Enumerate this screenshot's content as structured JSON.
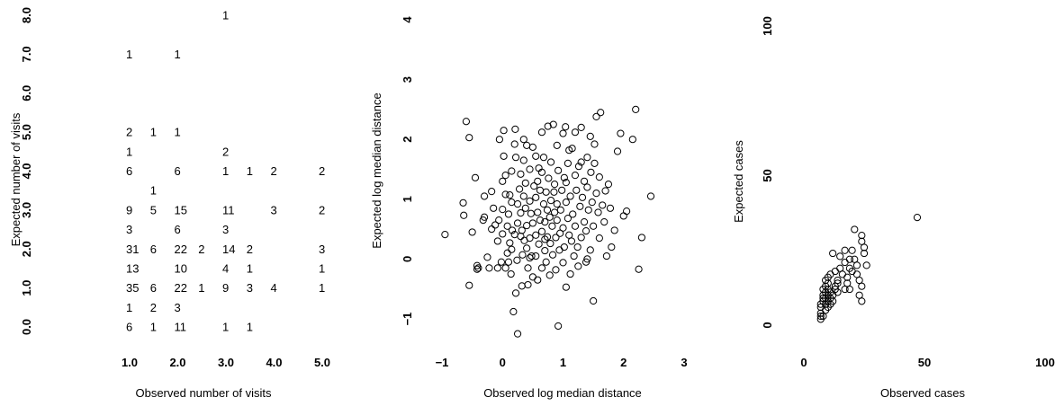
{
  "chart_data": [
    {
      "type": "table",
      "xlabel": "Observed number of visits",
      "ylabel": "Expected number of visits",
      "x_ticks": [
        "1.0",
        "2.0",
        "3.0",
        "4.0",
        "5.0"
      ],
      "y_ticks": [
        "0.0",
        "1.0",
        "2.0",
        "3.0",
        "4.0",
        "5.0",
        "6.0",
        "7.0",
        "8.0"
      ],
      "xlim": [
        1,
        5
      ],
      "ylim": [
        0,
        8
      ],
      "cells": [
        {
          "x": 1.0,
          "y": 0.0,
          "label": "6"
        },
        {
          "x": 1.5,
          "y": 0.0,
          "label": "1"
        },
        {
          "x": 2.0,
          "y": 0.0,
          "label": "11"
        },
        {
          "x": 3.0,
          "y": 0.0,
          "label": "1"
        },
        {
          "x": 3.5,
          "y": 0.0,
          "label": "1"
        },
        {
          "x": 1.0,
          "y": 0.5,
          "label": "1"
        },
        {
          "x": 1.5,
          "y": 0.5,
          "label": "2"
        },
        {
          "x": 2.0,
          "y": 0.5,
          "label": "3"
        },
        {
          "x": 1.0,
          "y": 1.0,
          "label": "35"
        },
        {
          "x": 1.5,
          "y": 1.0,
          "label": "6"
        },
        {
          "x": 2.0,
          "y": 1.0,
          "label": "22"
        },
        {
          "x": 2.5,
          "y": 1.0,
          "label": "1"
        },
        {
          "x": 3.0,
          "y": 1.0,
          "label": "9"
        },
        {
          "x": 3.5,
          "y": 1.0,
          "label": "3"
        },
        {
          "x": 4.0,
          "y": 1.0,
          "label": "4"
        },
        {
          "x": 5.0,
          "y": 1.0,
          "label": "1"
        },
        {
          "x": 1.0,
          "y": 1.5,
          "label": "13"
        },
        {
          "x": 2.0,
          "y": 1.5,
          "label": "10"
        },
        {
          "x": 3.0,
          "y": 1.5,
          "label": "4"
        },
        {
          "x": 3.5,
          "y": 1.5,
          "label": "1"
        },
        {
          "x": 5.0,
          "y": 1.5,
          "label": "1"
        },
        {
          "x": 1.0,
          "y": 2.0,
          "label": "31"
        },
        {
          "x": 1.5,
          "y": 2.0,
          "label": "6"
        },
        {
          "x": 2.0,
          "y": 2.0,
          "label": "22"
        },
        {
          "x": 2.5,
          "y": 2.0,
          "label": "2"
        },
        {
          "x": 3.0,
          "y": 2.0,
          "label": "14"
        },
        {
          "x": 3.5,
          "y": 2.0,
          "label": "2"
        },
        {
          "x": 5.0,
          "y": 2.0,
          "label": "3"
        },
        {
          "x": 1.0,
          "y": 2.5,
          "label": "3"
        },
        {
          "x": 2.0,
          "y": 2.5,
          "label": "6"
        },
        {
          "x": 3.0,
          "y": 2.5,
          "label": "3"
        },
        {
          "x": 1.0,
          "y": 3.0,
          "label": "9"
        },
        {
          "x": 1.5,
          "y": 3.0,
          "label": "5"
        },
        {
          "x": 2.0,
          "y": 3.0,
          "label": "15"
        },
        {
          "x": 3.0,
          "y": 3.0,
          "label": "11"
        },
        {
          "x": 4.0,
          "y": 3.0,
          "label": "3"
        },
        {
          "x": 5.0,
          "y": 3.0,
          "label": "2"
        },
        {
          "x": 1.5,
          "y": 3.5,
          "label": "1"
        },
        {
          "x": 1.0,
          "y": 4.0,
          "label": "6"
        },
        {
          "x": 2.0,
          "y": 4.0,
          "label": "6"
        },
        {
          "x": 3.0,
          "y": 4.0,
          "label": "1"
        },
        {
          "x": 3.5,
          "y": 4.0,
          "label": "1"
        },
        {
          "x": 4.0,
          "y": 4.0,
          "label": "2"
        },
        {
          "x": 5.0,
          "y": 4.0,
          "label": "2"
        },
        {
          "x": 1.0,
          "y": 4.5,
          "label": "1"
        },
        {
          "x": 3.0,
          "y": 4.5,
          "label": "2"
        },
        {
          "x": 1.0,
          "y": 5.0,
          "label": "2"
        },
        {
          "x": 1.5,
          "y": 5.0,
          "label": "1"
        },
        {
          "x": 2.0,
          "y": 5.0,
          "label": "1"
        },
        {
          "x": 1.0,
          "y": 7.0,
          "label": "1"
        },
        {
          "x": 2.0,
          "y": 7.0,
          "label": "1"
        },
        {
          "x": 3.0,
          "y": 8.0,
          "label": "1"
        }
      ]
    },
    {
      "type": "scatter",
      "xlabel": "Observed log median distance",
      "ylabel": "Expected log median distance",
      "x_ticks": [
        "−1",
        "0",
        "1",
        "2",
        "3"
      ],
      "y_ticks": [
        "−1",
        "0",
        "1",
        "2",
        "3",
        "4"
      ],
      "xlim": [
        -1,
        3
      ],
      "ylim": [
        -1,
        4
      ],
      "points": [
        [
          -0.95,
          0.41
        ],
        [
          -0.55,
          2.03
        ],
        [
          -0.6,
          2.3
        ],
        [
          -0.65,
          0.94
        ],
        [
          -0.64,
          0.73
        ],
        [
          -0.55,
          -0.44
        ],
        [
          -0.5,
          0.45
        ],
        [
          -0.45,
          1.36
        ],
        [
          -0.42,
          -0.17
        ],
        [
          -0.42,
          -0.11
        ],
        [
          -0.4,
          -0.15
        ],
        [
          -0.32,
          0.65
        ],
        [
          -0.3,
          0.7
        ],
        [
          -0.25,
          0.03
        ],
        [
          -0.22,
          -0.15
        ],
        [
          -0.18,
          0.5
        ],
        [
          -0.18,
          1.13
        ],
        [
          -0.12,
          0.57
        ],
        [
          -0.08,
          -0.15
        ],
        [
          -0.08,
          0.3
        ],
        [
          -0.06,
          0.65
        ],
        [
          -0.05,
          2.0
        ],
        [
          -0.02,
          -0.05
        ],
        [
          0.0,
          0.83
        ],
        [
          0.0,
          1.3
        ],
        [
          0.0,
          0.42
        ],
        [
          0.02,
          2.15
        ],
        [
          0.05,
          1.4
        ],
        [
          0.05,
          1.08
        ],
        [
          0.08,
          0.1
        ],
        [
          0.05,
          -0.15
        ],
        [
          0.08,
          0.55
        ],
        [
          0.1,
          -0.05
        ],
        [
          0.12,
          0.27
        ],
        [
          0.12,
          1.07
        ],
        [
          0.14,
          -0.25
        ],
        [
          0.15,
          1.47
        ],
        [
          0.15,
          0.16
        ],
        [
          0.16,
          0.48
        ],
        [
          0.18,
          -0.88
        ],
        [
          0.2,
          0.41
        ],
        [
          0.21,
          2.17
        ],
        [
          0.22,
          -0.57
        ],
        [
          0.22,
          1.7
        ],
        [
          0.24,
          -0.02
        ],
        [
          0.25,
          -1.25
        ],
        [
          0.25,
          0.6
        ],
        [
          0.25,
          0.92
        ],
        [
          0.28,
          1.17
        ],
        [
          0.3,
          0.38
        ],
        [
          0.3,
          0.77
        ],
        [
          0.32,
          0.48
        ],
        [
          0.32,
          -0.45
        ],
        [
          0.33,
          0.07
        ],
        [
          0.35,
          1.65
        ],
        [
          0.35,
          1.05
        ],
        [
          0.36,
          0.31
        ],
        [
          0.38,
          1.27
        ],
        [
          0.38,
          0.85
        ],
        [
          0.4,
          0.56
        ],
        [
          0.4,
          0.18
        ],
        [
          0.42,
          -0.15
        ],
        [
          0.42,
          -0.43
        ],
        [
          0.45,
          0.97
        ],
        [
          0.45,
          1.5
        ],
        [
          0.45,
          0.35
        ],
        [
          0.47,
          0.76
        ],
        [
          0.48,
          0.05
        ],
        [
          0.5,
          0.6
        ],
        [
          0.5,
          -0.3
        ],
        [
          0.5,
          1.87
        ],
        [
          0.52,
          1.22
        ],
        [
          0.55,
          0.4
        ],
        [
          0.55,
          0.05
        ],
        [
          0.55,
          1.03
        ],
        [
          0.58,
          0.78
        ],
        [
          0.58,
          -0.35
        ],
        [
          0.58,
          1.3
        ],
        [
          0.6,
          0.25
        ],
        [
          0.62,
          0.65
        ],
        [
          0.62,
          1.15
        ],
        [
          0.65,
          1.45
        ],
        [
          0.65,
          -0.15
        ],
        [
          0.65,
          0.46
        ],
        [
          0.68,
          0.92
        ],
        [
          0.68,
          1.7
        ],
        [
          0.7,
          0.14
        ],
        [
          0.7,
          0.62
        ],
        [
          0.72,
          -0.05
        ],
        [
          0.72,
          1.12
        ],
        [
          0.74,
          0.37
        ],
        [
          0.74,
          0.82
        ],
        [
          0.75,
          2.22
        ],
        [
          0.76,
          1.35
        ],
        [
          0.78,
          0.7
        ],
        [
          0.78,
          -0.27
        ],
        [
          0.79,
          0.26
        ],
        [
          0.8,
          0.98
        ],
        [
          0.8,
          1.62
        ],
        [
          0.82,
          0.55
        ],
        [
          0.83,
          0.07
        ],
        [
          0.84,
          2.25
        ],
        [
          0.86,
          0.78
        ],
        [
          0.86,
          1.25
        ],
        [
          0.88,
          0.36
        ],
        [
          0.88,
          -0.18
        ],
        [
          0.9,
          0.65
        ],
        [
          0.9,
          0.92
        ],
        [
          0.92,
          -1.12
        ],
        [
          0.92,
          1.48
        ],
        [
          0.94,
          0.15
        ],
        [
          0.95,
          0.43
        ],
        [
          0.96,
          0.82
        ],
        [
          0.98,
          1.15
        ],
        [
          1.0,
          0.52
        ],
        [
          1.0,
          -0.06
        ],
        [
          1.02,
          1.36
        ],
        [
          1.02,
          0.2
        ],
        [
          1.04,
          2.21
        ],
        [
          1.05,
          0.95
        ],
        [
          1.05,
          -0.47
        ],
        [
          1.08,
          0.68
        ],
        [
          1.08,
          1.6
        ],
        [
          1.1,
          0.4
        ],
        [
          1.12,
          1.05
        ],
        [
          1.12,
          -0.25
        ],
        [
          1.14,
          0.3
        ],
        [
          1.15,
          1.85
        ],
        [
          1.16,
          0.75
        ],
        [
          1.18,
          0.05
        ],
        [
          1.2,
          1.4
        ],
        [
          1.2,
          0.55
        ],
        [
          1.22,
          1.15
        ],
        [
          1.24,
          0.2
        ],
        [
          1.25,
          -0.12
        ],
        [
          1.26,
          1.55
        ],
        [
          1.28,
          0.88
        ],
        [
          1.3,
          0.36
        ],
        [
          1.3,
          2.2
        ],
        [
          1.32,
          1.03
        ],
        [
          1.35,
          0.62
        ],
        [
          1.35,
          1.3
        ],
        [
          1.38,
          -0.05
        ],
        [
          1.38,
          0.47
        ],
        [
          1.4,
          1.7
        ],
        [
          1.4,
          1.2
        ],
        [
          1.42,
          0.82
        ],
        [
          1.45,
          2.05
        ],
        [
          1.45,
          0.15
        ],
        [
          1.46,
          1.45
        ],
        [
          1.48,
          0.95
        ],
        [
          1.5,
          -0.7
        ],
        [
          1.5,
          0.55
        ],
        [
          1.52,
          1.6
        ],
        [
          1.55,
          2.38
        ],
        [
          1.55,
          1.1
        ],
        [
          1.58,
          0.78
        ],
        [
          1.6,
          0.35
        ],
        [
          1.6,
          1.37
        ],
        [
          1.62,
          2.45
        ],
        [
          1.65,
          0.9
        ],
        [
          1.68,
          0.62
        ],
        [
          1.7,
          1.14
        ],
        [
          1.72,
          0.05
        ],
        [
          1.75,
          1.25
        ],
        [
          1.78,
          0.85
        ],
        [
          1.8,
          0.2
        ],
        [
          1.85,
          0.48
        ],
        [
          1.9,
          1.8
        ],
        [
          1.95,
          2.1
        ],
        [
          2.0,
          0.72
        ],
        [
          2.05,
          0.8
        ],
        [
          2.15,
          2.0
        ],
        [
          2.2,
          2.5
        ],
        [
          2.25,
          -0.17
        ],
        [
          2.3,
          0.36
        ],
        [
          2.45,
          1.05
        ],
        [
          1.52,
          1.92
        ],
        [
          0.6,
          1.52
        ],
        [
          0.9,
          1.9
        ],
        [
          0.2,
          1.92
        ],
        [
          1.3,
          1.62
        ],
        [
          0.4,
          1.9
        ],
        [
          1.0,
          2.1
        ],
        [
          1.2,
          2.12
        ],
        [
          0.35,
          2.0
        ],
        [
          0.65,
          2.12
        ],
        [
          0.1,
          0.75
        ],
        [
          0.02,
          1.72
        ],
        [
          1.4,
          0.0
        ],
        [
          -0.3,
          1.05
        ],
        [
          0.85,
          1.12
        ],
        [
          1.1,
          1.82
        ],
        [
          0.55,
          1.72
        ],
        [
          0.15,
          0.95
        ],
        [
          0.3,
          1.42
        ],
        [
          -0.15,
          0.85
        ],
        [
          0.45,
          0.02
        ],
        [
          1.05,
          1.28
        ],
        [
          0.7,
          0.33
        ]
      ]
    },
    {
      "type": "scatter",
      "xlabel": "Observed cases",
      "ylabel": "Expected cases",
      "x_ticks": [
        "0",
        "50",
        "100"
      ],
      "y_ticks": [
        "0",
        "50",
        "100"
      ],
      "xlim": [
        0,
        100
      ],
      "ylim": [
        0,
        100
      ],
      "points": [
        [
          7,
          2
        ],
        [
          7,
          3
        ],
        [
          7,
          4
        ],
        [
          7,
          6
        ],
        [
          7,
          7
        ],
        [
          8,
          3
        ],
        [
          8,
          8
        ],
        [
          8,
          9
        ],
        [
          8,
          10
        ],
        [
          8,
          12
        ],
        [
          9,
          5
        ],
        [
          9,
          7
        ],
        [
          9,
          9
        ],
        [
          9,
          11
        ],
        [
          9,
          13
        ],
        [
          9,
          15
        ],
        [
          10,
          6
        ],
        [
          10,
          8
        ],
        [
          10,
          10
        ],
        [
          10,
          12
        ],
        [
          10,
          14
        ],
        [
          10,
          16
        ],
        [
          11,
          7
        ],
        [
          11,
          9
        ],
        [
          11,
          11
        ],
        [
          11,
          17
        ],
        [
          12,
          8
        ],
        [
          12,
          10
        ],
        [
          13,
          12
        ],
        [
          13,
          13
        ],
        [
          14,
          11
        ],
        [
          14,
          14
        ],
        [
          14,
          15
        ],
        [
          15,
          19
        ],
        [
          15,
          23
        ],
        [
          16,
          17
        ],
        [
          17,
          12
        ],
        [
          17,
          21
        ],
        [
          18,
          16
        ],
        [
          18,
          14
        ],
        [
          19,
          19
        ],
        [
          19,
          22
        ],
        [
          19,
          12
        ],
        [
          20,
          25
        ],
        [
          20,
          18
        ],
        [
          21,
          32
        ],
        [
          22,
          20
        ],
        [
          22,
          17
        ],
        [
          23,
          15
        ],
        [
          23,
          10
        ],
        [
          24,
          13
        ],
        [
          24,
          28
        ],
        [
          24,
          30
        ],
        [
          25,
          26
        ],
        [
          25,
          24
        ],
        [
          26,
          20
        ],
        [
          47,
          36
        ],
        [
          17,
          25
        ],
        [
          13,
          18
        ],
        [
          12,
          24
        ],
        [
          21,
          22
        ],
        [
          24,
          8
        ]
      ]
    }
  ]
}
